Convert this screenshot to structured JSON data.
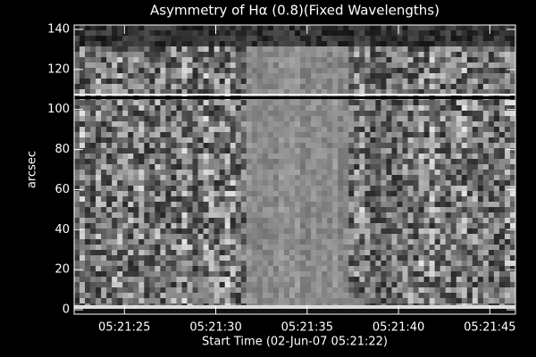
{
  "chart_data": {
    "type": "image",
    "title": "Asymmetry of Hα (0.8)(Fixed Wavelengths)",
    "x_label": "Start Time (02-Jun-07 05:21:22)",
    "y_label": "arcsec",
    "xlim": [
      22.25,
      46.4
    ],
    "xticks": [
      {
        "value": 25,
        "label": "05:21:25"
      },
      {
        "value": 30,
        "label": "05:21:30"
      },
      {
        "value": 35,
        "label": "05:21:35"
      },
      {
        "value": 40,
        "label": "05:21:40"
      },
      {
        "value": 45,
        "label": "05:21:45"
      }
    ],
    "ylim": [
      -2.2,
      142.2
    ],
    "yticks": [
      0,
      20,
      40,
      60,
      80,
      100,
      120,
      140
    ],
    "color": "#ffffff"
  }
}
